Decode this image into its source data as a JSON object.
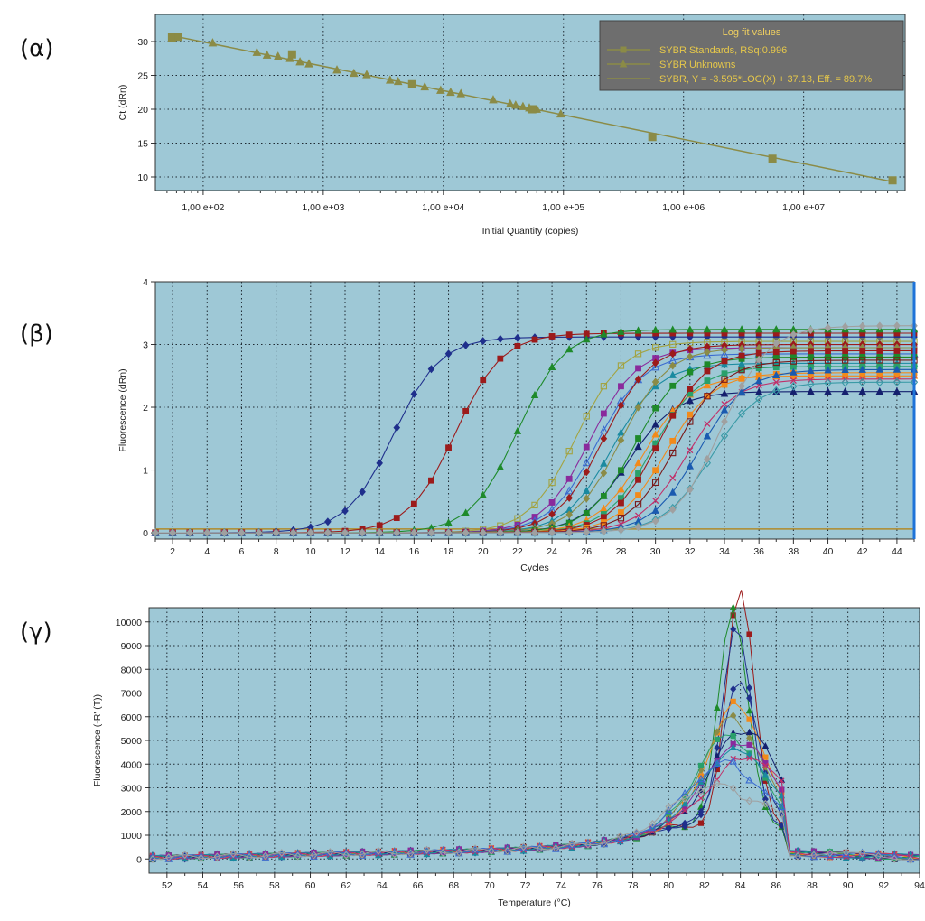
{
  "colors": {
    "plot_bg": "#9ec8d6",
    "olive": "#8b8b46",
    "legend_bg": "#6e6e6e",
    "legend_text": "#e6c84a",
    "cursor": "#1e73d8"
  },
  "chart_data": [
    {
      "id": "alpha",
      "panel_label": "(α)",
      "type": "scatter",
      "xscale": "log",
      "xlim": [
        40,
        70000000
      ],
      "ylim": [
        8,
        34
      ],
      "xlabel": "Initial Quantity (copies)",
      "ylabel": "Ct (dRn)",
      "x_ticks": [
        100,
        1000,
        10000,
        100000,
        1000000,
        10000000
      ],
      "x_tick_labels": [
        "1,00 e+02",
        "1,00 e+03",
        "1,00 e+04",
        "1,00 e+05",
        "1,00 e+06",
        "1,00 e+07"
      ],
      "y_ticks": [
        10,
        15,
        20,
        25,
        30
      ],
      "grid": true,
      "legend": {
        "placement": "top-right",
        "title": "Log fit values",
        "entries": [
          "SYBR Standards, RSq:0.996",
          "SYBR Unknowns",
          "SYBR, Y = -3.595*LOG(X) + 37.13, Eff. = 89.7%"
        ]
      },
      "fit": {
        "slope": -3.595,
        "intercept": 37.13
      },
      "standards": [
        {
          "x": 55,
          "y": 30.6
        },
        {
          "x": 62,
          "y": 30.7
        },
        {
          "x": 550,
          "y": 28.1
        },
        {
          "x": 5500,
          "y": 23.7
        },
        {
          "x": 55000,
          "y": 20.0
        },
        {
          "x": 550000,
          "y": 15.9
        },
        {
          "x": 5500000,
          "y": 12.7
        },
        {
          "x": 55000000,
          "y": 9.5
        }
      ],
      "unknowns": [
        {
          "x": 120,
          "y": 29.8
        },
        {
          "x": 280,
          "y": 28.4
        },
        {
          "x": 340,
          "y": 28.0
        },
        {
          "x": 420,
          "y": 27.8
        },
        {
          "x": 530,
          "y": 27.5
        },
        {
          "x": 640,
          "y": 27.0
        },
        {
          "x": 760,
          "y": 26.7
        },
        {
          "x": 1300,
          "y": 25.8
        },
        {
          "x": 1800,
          "y": 25.3
        },
        {
          "x": 2300,
          "y": 25.1
        },
        {
          "x": 3600,
          "y": 24.3
        },
        {
          "x": 4200,
          "y": 24.1
        },
        {
          "x": 7000,
          "y": 23.3
        },
        {
          "x": 9500,
          "y": 22.8
        },
        {
          "x": 11500,
          "y": 22.5
        },
        {
          "x": 14000,
          "y": 22.3
        },
        {
          "x": 26000,
          "y": 21.4
        },
        {
          "x": 36000,
          "y": 20.8
        },
        {
          "x": 40000,
          "y": 20.6
        },
        {
          "x": 46000,
          "y": 20.4
        },
        {
          "x": 52000,
          "y": 20.2
        },
        {
          "x": 60000,
          "y": 20.0
        },
        {
          "x": 95000,
          "y": 19.3
        }
      ]
    },
    {
      "id": "beta",
      "panel_label": "(β)",
      "type": "line",
      "xlim": [
        1,
        45
      ],
      "ylim": [
        -0.1,
        4
      ],
      "xlabel": "Cycles",
      "ylabel": "Fluorescence (dRn)",
      "x_ticks": [
        2,
        4,
        6,
        8,
        10,
        12,
        14,
        16,
        18,
        20,
        22,
        24,
        26,
        28,
        30,
        32,
        34,
        36,
        38,
        40,
        42,
        44
      ],
      "y_ticks": [
        0,
        1,
        2,
        3,
        4
      ],
      "grid": true,
      "threshold": 0.06,
      "series": [
        {
          "ct": 14.8,
          "plateau": 3.12,
          "color": "#1f2f8c",
          "marker": "diamond"
        },
        {
          "ct": 18.4,
          "plateau": 3.18,
          "color": "#9c1b1b",
          "marker": "square"
        },
        {
          "ct": 22.0,
          "plateau": 3.24,
          "color": "#1e8a2a",
          "marker": "triangle"
        },
        {
          "ct": 25.4,
          "plateau": 3.05,
          "color": "#a3a340",
          "marker": "open-square"
        },
        {
          "ct": 26.2,
          "plateau": 2.95,
          "color": "#8a2a9c",
          "marker": "square"
        },
        {
          "ct": 26.6,
          "plateau": 2.85,
          "color": "#3a6ad0",
          "marker": "open-triangle"
        },
        {
          "ct": 27.0,
          "plateau": 3.0,
          "color": "#9c1b1b",
          "marker": "diamond"
        },
        {
          "ct": 27.5,
          "plateau": 2.7,
          "color": "#1a8aa0",
          "marker": "triangle"
        },
        {
          "ct": 28.0,
          "plateau": 2.95,
          "color": "#8b8b46",
          "marker": "diamond"
        },
        {
          "ct": 28.4,
          "plateau": 2.25,
          "color": "#14206e",
          "marker": "triangle"
        },
        {
          "ct": 28.8,
          "plateau": 2.8,
          "color": "#1e8a2a",
          "marker": "square"
        },
        {
          "ct": 29.3,
          "plateau": 2.5,
          "color": "#f28a1a",
          "marker": "triangle"
        },
        {
          "ct": 29.8,
          "plateau": 2.65,
          "color": "#2aa06a",
          "marker": "square"
        },
        {
          "ct": 30.2,
          "plateau": 2.9,
          "color": "#9c1b1b",
          "marker": "square"
        },
        {
          "ct": 30.6,
          "plateau": 2.55,
          "color": "#f28a1a",
          "marker": "square"
        },
        {
          "ct": 31.2,
          "plateau": 2.75,
          "color": "#7a1a1a",
          "marker": "open-square"
        },
        {
          "ct": 31.8,
          "plateau": 2.45,
          "color": "#c0306a",
          "marker": "x"
        },
        {
          "ct": 32.5,
          "plateau": 2.6,
          "color": "#1a5ab0",
          "marker": "triangle"
        },
        {
          "ct": 33.2,
          "plateau": 2.4,
          "color": "#3a9aa6",
          "marker": "open-diamond"
        },
        {
          "ct": 33.8,
          "plateau": 3.3,
          "color": "#a0a0a0",
          "marker": "diamond"
        }
      ]
    },
    {
      "id": "gamma",
      "panel_label": "(γ)",
      "type": "line",
      "xlim": [
        51,
        94
      ],
      "ylim": [
        -600,
        10600
      ],
      "xlabel": "Temperature (°C)",
      "ylabel": "Fluorescence (-R' (T))",
      "x_ticks": [
        52,
        54,
        56,
        58,
        60,
        62,
        64,
        66,
        68,
        70,
        72,
        74,
        76,
        78,
        80,
        82,
        84,
        86,
        88,
        90,
        92,
        94
      ],
      "y_ticks": [
        0,
        1000,
        2000,
        3000,
        4000,
        5000,
        6000,
        7000,
        8000,
        9000,
        10000
      ],
      "grid": true,
      "series": [
        {
          "peak": 10300,
          "center": 84.0,
          "width": 0.75,
          "color": "#9c1b1b",
          "marker": "square"
        },
        {
          "peak": 9300,
          "center": 83.6,
          "width": 0.8,
          "color": "#1e8a2a",
          "marker": "triangle"
        },
        {
          "peak": 8600,
          "center": 83.8,
          "width": 0.8,
          "color": "#1f2f8c",
          "marker": "diamond"
        },
        {
          "peak": 6200,
          "center": 84.0,
          "width": 1.0,
          "color": "#1f2f8c",
          "marker": "diamond"
        },
        {
          "peak": 5200,
          "center": 83.8,
          "width": 1.5,
          "color": "#f28a1a",
          "marker": "square"
        },
        {
          "peak": 4600,
          "center": 83.6,
          "width": 1.6,
          "color": "#8b8b46",
          "marker": "diamond"
        },
        {
          "peak": 4200,
          "center": 84.2,
          "width": 1.7,
          "color": "#14206e",
          "marker": "triangle"
        },
        {
          "peak": 3900,
          "center": 83.4,
          "width": 1.7,
          "color": "#2aa06a",
          "marker": "square"
        },
        {
          "peak": 3600,
          "center": 84.0,
          "width": 1.8,
          "color": "#8a2a9c",
          "marker": "square"
        },
        {
          "peak": 3300,
          "center": 83.8,
          "width": 1.8,
          "color": "#1a8aa0",
          "marker": "triangle"
        },
        {
          "peak": 3000,
          "center": 84.4,
          "width": 1.9,
          "color": "#c0306a",
          "marker": "x"
        },
        {
          "peak": 2700,
          "center": 83.2,
          "width": 1.9,
          "color": "#3a6ad0",
          "marker": "open-triangle"
        },
        {
          "peak": 1700,
          "center": 82.8,
          "width": 2.2,
          "color": "#a0a0a0",
          "marker": "open-diamond"
        }
      ]
    }
  ]
}
